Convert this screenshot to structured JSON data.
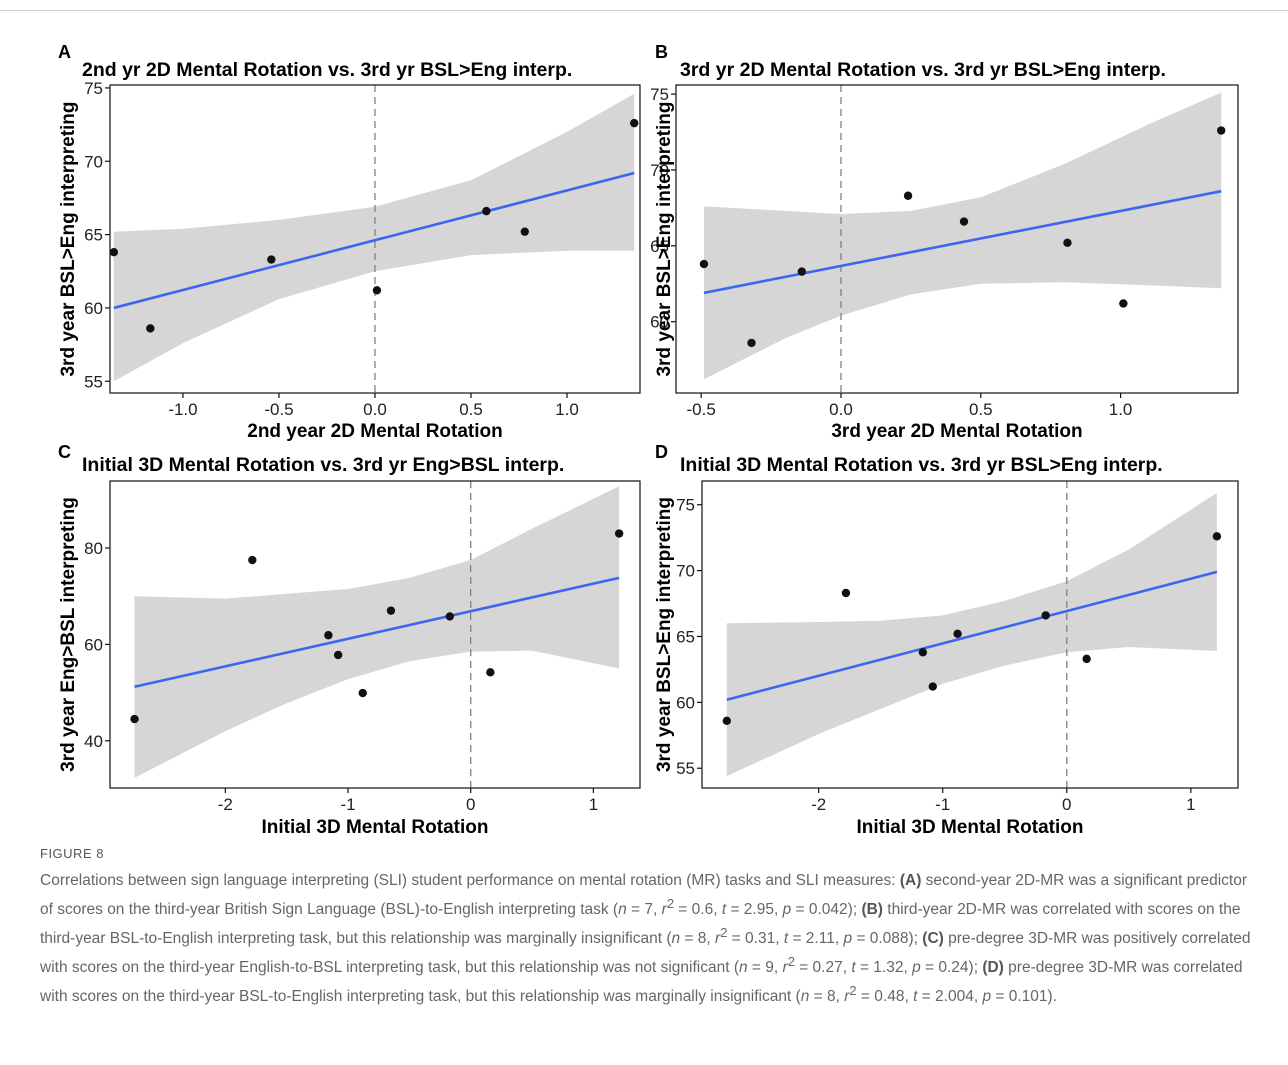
{
  "chart_data": [
    {
      "type": "scatter",
      "panel": "A",
      "title": "2nd yr 2D Mental Rotation vs. 3rd yr BSL>Eng interp.",
      "xlabel": "2nd year 2D Mental Rotation",
      "ylabel": "3rd year BSL>Eng interpreting",
      "xlim": [
        -1.38,
        1.38
      ],
      "ylim": [
        54.2,
        75.2
      ],
      "xticks": [
        -1.0,
        -0.5,
        0.0,
        0.5,
        1.0
      ],
      "xtick_labels": [
        "-1.0",
        "-0.5",
        "0.0",
        "0.5",
        "1.0"
      ],
      "yticks": [
        55,
        60,
        65,
        70,
        75
      ],
      "ytick_labels": [
        "55",
        "60",
        "65",
        "70",
        "75"
      ],
      "points": [
        {
          "x": -1.36,
          "y": 63.8
        },
        {
          "x": -1.17,
          "y": 58.6
        },
        {
          "x": -0.54,
          "y": 63.3
        },
        {
          "x": 0.01,
          "y": 61.2
        },
        {
          "x": 0.58,
          "y": 66.6
        },
        {
          "x": 0.78,
          "y": 65.2
        },
        {
          "x": 1.35,
          "y": 72.6
        }
      ],
      "fit": {
        "x": [
          -1.36,
          1.35
        ],
        "y": [
          60.0,
          69.2
        ]
      },
      "ci_band": [
        {
          "x": -1.36,
          "lo": 55.0,
          "hi": 65.2
        },
        {
          "x": -1.0,
          "lo": 57.6,
          "hi": 65.4
        },
        {
          "x": -0.5,
          "lo": 60.6,
          "hi": 66.0
        },
        {
          "x": 0.0,
          "lo": 62.5,
          "hi": 66.9
        },
        {
          "x": 0.5,
          "lo": 63.6,
          "hi": 68.7
        },
        {
          "x": 1.0,
          "lo": 63.9,
          "hi": 72.0
        },
        {
          "x": 1.35,
          "lo": 63.9,
          "hi": 74.6
        }
      ],
      "vline": 0,
      "grid": false
    },
    {
      "type": "scatter",
      "panel": "B",
      "title": "3rd yr 2D Mental Rotation vs. 3rd yr BSL>Eng interp.",
      "xlabel": "3rd year 2D Mental Rotation",
      "ylabel": "3rd year BSL>Eng interpreting",
      "xlim": [
        -0.59,
        1.42
      ],
      "ylim": [
        55.3,
        75.6
      ],
      "xticks": [
        -0.5,
        0.0,
        0.5,
        1.0
      ],
      "xtick_labels": [
        "-0.5",
        "0.0",
        "0.5",
        "1.0"
      ],
      "yticks": [
        60,
        65,
        70,
        75
      ],
      "ytick_labels": [
        "60",
        "65",
        "70",
        "75"
      ],
      "points": [
        {
          "x": -0.49,
          "y": 63.8
        },
        {
          "x": -0.32,
          "y": 58.6
        },
        {
          "x": -0.14,
          "y": 63.3
        },
        {
          "x": 0.24,
          "y": 68.3
        },
        {
          "x": 0.44,
          "y": 66.6
        },
        {
          "x": 0.81,
          "y": 65.2
        },
        {
          "x": 1.01,
          "y": 61.2
        },
        {
          "x": 1.36,
          "y": 72.6
        }
      ],
      "fit": {
        "x": [
          -0.49,
          1.36
        ],
        "y": [
          61.9,
          68.6
        ]
      },
      "ci_band": [
        {
          "x": -0.49,
          "lo": 56.2,
          "hi": 67.6
        },
        {
          "x": -0.2,
          "lo": 58.9,
          "hi": 67.3
        },
        {
          "x": 0.0,
          "lo": 60.4,
          "hi": 67.1
        },
        {
          "x": 0.25,
          "lo": 61.8,
          "hi": 67.3
        },
        {
          "x": 0.5,
          "lo": 62.5,
          "hi": 68.2
        },
        {
          "x": 0.8,
          "lo": 62.6,
          "hi": 70.4
        },
        {
          "x": 1.1,
          "lo": 62.4,
          "hi": 73.0
        },
        {
          "x": 1.36,
          "lo": 62.2,
          "hi": 75.1
        }
      ],
      "vline": 0,
      "grid": false
    },
    {
      "type": "scatter",
      "panel": "C",
      "title": "Initial 3D Mental Rotation vs. 3rd yr Eng>BSL interp.",
      "xlabel": "Initial 3D Mental Rotation",
      "ylabel": "3rd year Eng>BSL interpreting",
      "xlim": [
        -2.94,
        1.38
      ],
      "ylim": [
        30.2,
        93.9
      ],
      "xticks": [
        -2,
        -1,
        0,
        1
      ],
      "xtick_labels": [
        "-2",
        "-1",
        "0",
        "1"
      ],
      "yticks": [
        40,
        60,
        80
      ],
      "ytick_labels": [
        "40",
        "60",
        "80"
      ],
      "points": [
        {
          "x": -2.74,
          "y": 44.5
        },
        {
          "x": -1.78,
          "y": 77.5
        },
        {
          "x": -1.16,
          "y": 61.9
        },
        {
          "x": -1.08,
          "y": 57.8
        },
        {
          "x": -0.88,
          "y": 49.9
        },
        {
          "x": -0.65,
          "y": 67.0
        },
        {
          "x": -0.17,
          "y": 65.8
        },
        {
          "x": 0.16,
          "y": 54.2
        },
        {
          "x": 1.21,
          "y": 83.0
        }
      ],
      "fit": {
        "x": [
          -2.74,
          1.21
        ],
        "y": [
          51.2,
          73.8
        ]
      },
      "ci_band": [
        {
          "x": -2.74,
          "lo": 32.3,
          "hi": 70.0
        },
        {
          "x": -2.0,
          "lo": 42.0,
          "hi": 69.5
        },
        {
          "x": -1.5,
          "lo": 47.8,
          "hi": 70.5
        },
        {
          "x": -1.0,
          "lo": 52.8,
          "hi": 71.5
        },
        {
          "x": -0.5,
          "lo": 56.5,
          "hi": 73.8
        },
        {
          "x": 0.0,
          "lo": 58.5,
          "hi": 77.5
        },
        {
          "x": 0.5,
          "lo": 58.7,
          "hi": 84.0
        },
        {
          "x": 1.21,
          "lo": 55.0,
          "hi": 92.8
        }
      ],
      "vline": 0,
      "grid": false
    },
    {
      "type": "scatter",
      "panel": "D",
      "title": "Initial 3D Mental Rotation vs. 3rd yr BSL>Eng interp.",
      "xlabel": "Initial 3D Mental Rotation",
      "ylabel": "3rd year BSL>Eng interpreting",
      "xlim": [
        -2.94,
        1.38
      ],
      "ylim": [
        53.5,
        76.8
      ],
      "xticks": [
        -2,
        -1,
        0,
        1
      ],
      "xtick_labels": [
        "-2",
        "-1",
        "0",
        "1"
      ],
      "yticks": [
        55,
        60,
        65,
        70,
        75
      ],
      "ytick_labels": [
        "55",
        "60",
        "65",
        "70",
        "75"
      ],
      "points": [
        {
          "x": -2.74,
          "y": 58.6
        },
        {
          "x": -1.78,
          "y": 68.3
        },
        {
          "x": -1.16,
          "y": 63.8
        },
        {
          "x": -1.08,
          "y": 61.2
        },
        {
          "x": -0.88,
          "y": 65.2
        },
        {
          "x": -0.17,
          "y": 66.6
        },
        {
          "x": 0.16,
          "y": 63.3
        },
        {
          "x": 1.21,
          "y": 72.6
        }
      ],
      "fit": {
        "x": [
          -2.74,
          1.21
        ],
        "y": [
          60.2,
          69.9
        ]
      },
      "ci_band": [
        {
          "x": -2.74,
          "lo": 54.4,
          "hi": 66.0
        },
        {
          "x": -2.0,
          "lo": 57.6,
          "hi": 66.1
        },
        {
          "x": -1.5,
          "lo": 59.5,
          "hi": 66.2
        },
        {
          "x": -1.0,
          "lo": 61.4,
          "hi": 66.6
        },
        {
          "x": -0.5,
          "lo": 62.8,
          "hi": 67.7
        },
        {
          "x": 0.0,
          "lo": 63.8,
          "hi": 69.2
        },
        {
          "x": 0.5,
          "lo": 64.2,
          "hi": 71.6
        },
        {
          "x": 1.21,
          "lo": 63.9,
          "hi": 75.9
        }
      ],
      "vline": 0,
      "grid": false
    }
  ],
  "colors": {
    "fit_line": "#3b66ee",
    "ci_band": "#d6d6d6",
    "points": "#111111",
    "vline": "#888888",
    "axis": "#111111"
  },
  "caption": {
    "label": "FIGURE 8",
    "parts": [
      {
        "t": "Correlations between sign language interpreting (SLI) student performance on mental rotation (MR) tasks and SLI measures: "
      },
      {
        "t": "(A)",
        "b": true
      },
      {
        "t": " second-year 2D-MR was a significant predictor of scores on the third-year British Sign Language (BSL)-to-English interpreting task ("
      },
      {
        "t": "n",
        "i": true
      },
      {
        "t": " = 7, "
      },
      {
        "t": "r",
        "i": true
      },
      {
        "t": "2",
        "sup": true
      },
      {
        "t": " = 0.6, "
      },
      {
        "t": "t",
        "i": true
      },
      {
        "t": " = 2.95, "
      },
      {
        "t": "p",
        "i": true
      },
      {
        "t": " = 0.042); "
      },
      {
        "t": "(B)",
        "b": true
      },
      {
        "t": " third-year 2D-MR was correlated with scores on the third-year BSL-to-English interpreting task, but this relationship was marginally insignificant ("
      },
      {
        "t": "n",
        "i": true
      },
      {
        "t": " = 8, "
      },
      {
        "t": "r",
        "i": true
      },
      {
        "t": "2",
        "sup": true
      },
      {
        "t": " = 0.31, "
      },
      {
        "t": "t",
        "i": true
      },
      {
        "t": " = 2.11, "
      },
      {
        "t": "p",
        "i": true
      },
      {
        "t": " = 0.088); "
      },
      {
        "t": "(C)",
        "b": true
      },
      {
        "t": " pre-degree 3D-MR was positively correlated with scores on the third-year English-to-BSL interpreting task, but this relationship was not significant ("
      },
      {
        "t": "n",
        "i": true
      },
      {
        "t": " = 9, "
      },
      {
        "t": "r",
        "i": true
      },
      {
        "t": "2",
        "sup": true
      },
      {
        "t": " = 0.27, "
      },
      {
        "t": "t",
        "i": true
      },
      {
        "t": " = 1.32, "
      },
      {
        "t": "p",
        "i": true
      },
      {
        "t": " = 0.24); "
      },
      {
        "t": "(D)",
        "b": true
      },
      {
        "t": " pre-degree 3D-MR was correlated with scores on the third-year BSL-to-English interpreting task, but this relationship was marginally insignificant ("
      },
      {
        "t": "n",
        "i": true
      },
      {
        "t": " = 8, "
      },
      {
        "t": "r",
        "i": true
      },
      {
        "t": "2",
        "sup": true
      },
      {
        "t": " = 0.48, "
      },
      {
        "t": "t",
        "i": true
      },
      {
        "t": " = 2.004, "
      },
      {
        "t": "p",
        "i": true
      },
      {
        "t": " = 0.101)."
      }
    ]
  }
}
